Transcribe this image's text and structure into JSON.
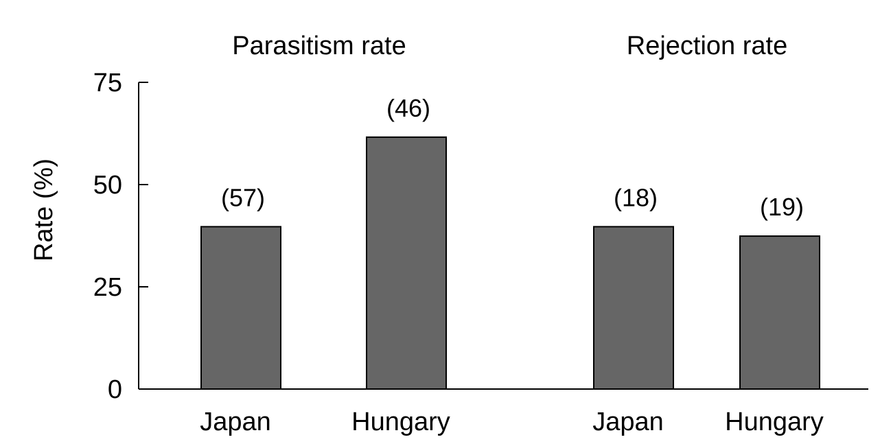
{
  "chart_data": {
    "type": "bar",
    "ylabel": "Rate (%)",
    "ylim": [
      0,
      75
    ],
    "yticks": [
      0,
      25,
      50,
      75
    ],
    "bar_color": "#666666",
    "groups": [
      {
        "title": "Parasitism rate",
        "categories": [
          "Japan",
          "Hungary"
        ],
        "values": [
          39.7,
          61.6
        ],
        "labels": [
          "(57)",
          "(46)"
        ]
      },
      {
        "title": "Rejection rate",
        "categories": [
          "Japan",
          "Hungary"
        ],
        "values": [
          39.7,
          37.4
        ],
        "labels": [
          "(18)",
          "(19)"
        ]
      }
    ]
  }
}
